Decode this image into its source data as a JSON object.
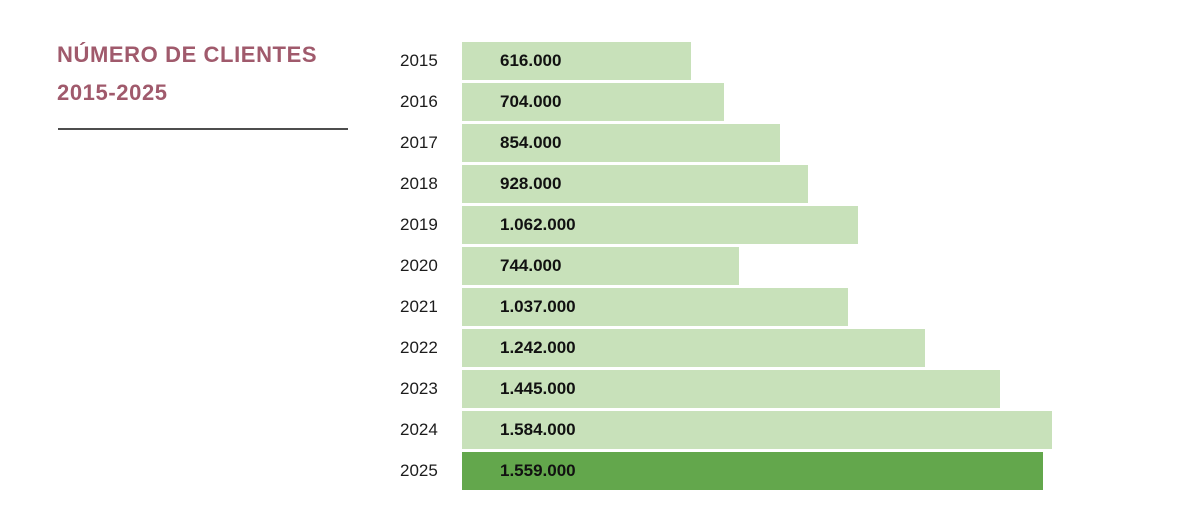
{
  "header": {
    "title_line1": "NÚMERO DE CLIENTES",
    "title_line2": "2015-2025",
    "title_color": "#a05a6c"
  },
  "chart_data": {
    "type": "bar",
    "orientation": "horizontal",
    "title": "NÚMERO DE CLIENTES 2015-2025",
    "categories": [
      "2015",
      "2016",
      "2017",
      "2018",
      "2019",
      "2020",
      "2021",
      "2022",
      "2023",
      "2024",
      "2025"
    ],
    "values": [
      616000,
      704000,
      854000,
      928000,
      1062000,
      744000,
      1037000,
      1242000,
      1445000,
      1584000,
      1559000
    ],
    "value_labels": [
      "616.000",
      "704.000",
      "854.000",
      "928.000",
      "1.062.000",
      "744.000",
      "1.037.000",
      "1.242.000",
      "1.445.000",
      "1.584.000",
      "1.559.000"
    ],
    "xlim": [
      0,
      1584000
    ],
    "grid": false,
    "legend": false,
    "bar_color": "#c8e1ba",
    "highlight_color": "#63a74c",
    "highlight_index": 10
  }
}
